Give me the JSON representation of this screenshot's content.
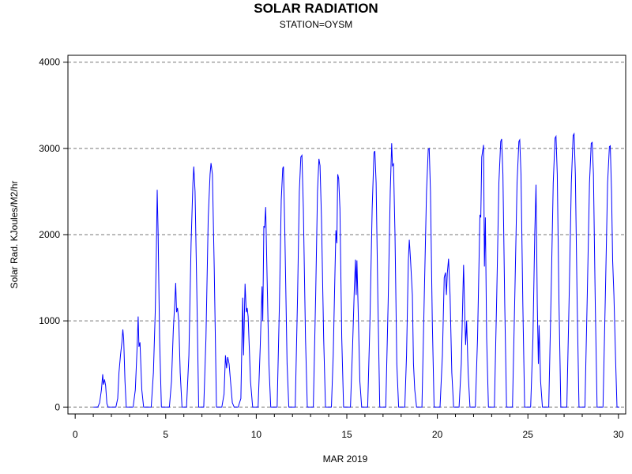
{
  "chart_data": {
    "type": "line",
    "title": "SOLAR RADIATION",
    "subtitle": "STATION=OYSM",
    "xlabel": "MAR 2019",
    "ylabel": "Solar Rad. KJoules/M2/hr",
    "xlim": [
      -0.4,
      30.4
    ],
    "ylim": [
      -80,
      4080
    ],
    "x_ticks": [
      0,
      5,
      10,
      15,
      20,
      25,
      30
    ],
    "y_ticks": [
      0,
      1000,
      2000,
      3000,
      4000
    ],
    "grid": "horizontal dashed",
    "series": [
      {
        "color": "#0000ff",
        "points": [
          [
            1.0,
            0
          ],
          [
            1.25,
            0
          ],
          [
            1.35,
            50
          ],
          [
            1.45,
            200
          ],
          [
            1.52,
            380
          ],
          [
            1.56,
            260
          ],
          [
            1.62,
            320
          ],
          [
            1.68,
            250
          ],
          [
            1.75,
            40
          ],
          [
            1.82,
            0
          ],
          [
            2.25,
            0
          ],
          [
            2.35,
            100
          ],
          [
            2.42,
            400
          ],
          [
            2.5,
            600
          ],
          [
            2.58,
            750
          ],
          [
            2.63,
            900
          ],
          [
            2.68,
            780
          ],
          [
            2.75,
            300
          ],
          [
            2.82,
            0
          ],
          [
            3.2,
            0
          ],
          [
            3.32,
            200
          ],
          [
            3.42,
            700
          ],
          [
            3.48,
            1050
          ],
          [
            3.52,
            700
          ],
          [
            3.58,
            750
          ],
          [
            3.68,
            200
          ],
          [
            3.78,
            0
          ],
          [
            4.2,
            0
          ],
          [
            4.32,
            400
          ],
          [
            4.42,
            1100
          ],
          [
            4.48,
            1800
          ],
          [
            4.53,
            2520
          ],
          [
            4.58,
            2000
          ],
          [
            4.66,
            800
          ],
          [
            4.76,
            0
          ],
          [
            5.2,
            0
          ],
          [
            5.32,
            300
          ],
          [
            5.42,
            900
          ],
          [
            5.5,
            1200
          ],
          [
            5.55,
            1440
          ],
          [
            5.6,
            1100
          ],
          [
            5.65,
            1150
          ],
          [
            5.72,
            1000
          ],
          [
            5.8,
            400
          ],
          [
            5.9,
            0
          ],
          [
            6.15,
            0
          ],
          [
            6.28,
            600
          ],
          [
            6.4,
            1900
          ],
          [
            6.5,
            2600
          ],
          [
            6.55,
            2790
          ],
          [
            6.62,
            2500
          ],
          [
            6.72,
            1300
          ],
          [
            6.82,
            0
          ],
          [
            7.1,
            0
          ],
          [
            7.22,
            800
          ],
          [
            7.35,
            2200
          ],
          [
            7.45,
            2700
          ],
          [
            7.5,
            2830
          ],
          [
            7.58,
            2700
          ],
          [
            7.68,
            1600
          ],
          [
            7.8,
            0
          ],
          [
            8.1,
            0
          ],
          [
            8.22,
            150
          ],
          [
            8.3,
            600
          ],
          [
            8.36,
            450
          ],
          [
            8.42,
            580
          ],
          [
            8.5,
            500
          ],
          [
            8.58,
            300
          ],
          [
            8.68,
            50
          ],
          [
            8.78,
            0
          ],
          [
            9.0,
            0
          ],
          [
            9.15,
            100
          ],
          [
            9.25,
            1270
          ],
          [
            9.3,
            600
          ],
          [
            9.38,
            1430
          ],
          [
            9.45,
            1100
          ],
          [
            9.5,
            1150
          ],
          [
            9.55,
            1050
          ],
          [
            9.68,
            300
          ],
          [
            9.8,
            0
          ],
          [
            10.1,
            0
          ],
          [
            10.22,
            700
          ],
          [
            10.32,
            1400
          ],
          [
            10.36,
            1000
          ],
          [
            10.42,
            2100
          ],
          [
            10.46,
            2080
          ],
          [
            10.52,
            2320
          ],
          [
            10.6,
            1500
          ],
          [
            10.7,
            500
          ],
          [
            10.8,
            0
          ],
          [
            11.15,
            0
          ],
          [
            11.28,
            1200
          ],
          [
            11.38,
            2400
          ],
          [
            11.46,
            2770
          ],
          [
            11.5,
            2790
          ],
          [
            11.58,
            2000
          ],
          [
            11.7,
            500
          ],
          [
            11.8,
            0
          ],
          [
            12.15,
            0
          ],
          [
            12.28,
            1300
          ],
          [
            12.38,
            2500
          ],
          [
            12.46,
            2900
          ],
          [
            12.52,
            2920
          ],
          [
            12.6,
            2300
          ],
          [
            12.72,
            800
          ],
          [
            12.82,
            0
          ],
          [
            13.15,
            0
          ],
          [
            13.28,
            1300
          ],
          [
            13.38,
            2500
          ],
          [
            13.46,
            2880
          ],
          [
            13.52,
            2800
          ],
          [
            13.6,
            2200
          ],
          [
            13.72,
            800
          ],
          [
            13.82,
            0
          ],
          [
            14.15,
            0
          ],
          [
            14.25,
            600
          ],
          [
            14.35,
            1600
          ],
          [
            14.4,
            2050
          ],
          [
            14.45,
            1900
          ],
          [
            14.5,
            2700
          ],
          [
            14.55,
            2650
          ],
          [
            14.62,
            2300
          ],
          [
            14.72,
            800
          ],
          [
            14.82,
            0
          ],
          [
            15.2,
            0
          ],
          [
            15.32,
            700
          ],
          [
            15.42,
            1400
          ],
          [
            15.48,
            1710
          ],
          [
            15.52,
            1300
          ],
          [
            15.56,
            1700
          ],
          [
            15.62,
            1200
          ],
          [
            15.72,
            300
          ],
          [
            15.82,
            0
          ],
          [
            16.15,
            0
          ],
          [
            16.28,
            1000
          ],
          [
            16.4,
            2300
          ],
          [
            16.5,
            2950
          ],
          [
            16.55,
            2970
          ],
          [
            16.62,
            2600
          ],
          [
            16.72,
            1200
          ],
          [
            16.82,
            0
          ],
          [
            17.15,
            0
          ],
          [
            17.28,
            1200
          ],
          [
            17.4,
            2500
          ],
          [
            17.48,
            3060
          ],
          [
            17.52,
            2800
          ],
          [
            17.58,
            2820
          ],
          [
            17.66,
            2000
          ],
          [
            17.76,
            500
          ],
          [
            17.86,
            0
          ],
          [
            18.2,
            0
          ],
          [
            18.3,
            600
          ],
          [
            18.4,
            1700
          ],
          [
            18.45,
            1940
          ],
          [
            18.52,
            1700
          ],
          [
            18.62,
            1300
          ],
          [
            18.68,
            500
          ],
          [
            18.75,
            200
          ],
          [
            18.85,
            0
          ],
          [
            19.15,
            0
          ],
          [
            19.28,
            1300
          ],
          [
            19.4,
            2500
          ],
          [
            19.5,
            2990
          ],
          [
            19.55,
            3000
          ],
          [
            19.62,
            2500
          ],
          [
            19.72,
            1000
          ],
          [
            19.82,
            0
          ],
          [
            20.15,
            0
          ],
          [
            20.28,
            600
          ],
          [
            20.38,
            1500
          ],
          [
            20.45,
            1560
          ],
          [
            20.5,
            1300
          ],
          [
            20.55,
            1550
          ],
          [
            20.62,
            1720
          ],
          [
            20.7,
            1300
          ],
          [
            20.8,
            400
          ],
          [
            20.9,
            0
          ],
          [
            21.2,
            0
          ],
          [
            21.32,
            500
          ],
          [
            21.45,
            1650
          ],
          [
            21.52,
            1000
          ],
          [
            21.56,
            720
          ],
          [
            21.62,
            1000
          ],
          [
            21.7,
            400
          ],
          [
            21.8,
            0
          ],
          [
            22.1,
            0
          ],
          [
            22.22,
            800
          ],
          [
            22.35,
            2230
          ],
          [
            22.4,
            2200
          ],
          [
            22.45,
            2900
          ],
          [
            22.55,
            3040
          ],
          [
            22.6,
            1630
          ],
          [
            22.65,
            2200
          ],
          [
            22.72,
            800
          ],
          [
            22.82,
            0
          ],
          [
            23.15,
            0
          ],
          [
            23.28,
            1300
          ],
          [
            23.4,
            2600
          ],
          [
            23.5,
            3080
          ],
          [
            23.55,
            3110
          ],
          [
            23.62,
            2700
          ],
          [
            23.72,
            1200
          ],
          [
            23.82,
            0
          ],
          [
            24.15,
            0
          ],
          [
            24.28,
            1300
          ],
          [
            24.4,
            2600
          ],
          [
            24.5,
            3080
          ],
          [
            24.55,
            3100
          ],
          [
            24.62,
            2700
          ],
          [
            24.72,
            1200
          ],
          [
            24.82,
            0
          ],
          [
            25.15,
            0
          ],
          [
            25.28,
            800
          ],
          [
            25.38,
            2000
          ],
          [
            25.45,
            2580
          ],
          [
            25.52,
            1200
          ],
          [
            25.58,
            500
          ],
          [
            25.62,
            950
          ],
          [
            25.7,
            300
          ],
          [
            25.8,
            0
          ],
          [
            26.15,
            0
          ],
          [
            26.28,
            1300
          ],
          [
            26.4,
            2600
          ],
          [
            26.5,
            3120
          ],
          [
            26.55,
            3140
          ],
          [
            26.62,
            2700
          ],
          [
            26.72,
            1200
          ],
          [
            26.82,
            0
          ],
          [
            27.15,
            0
          ],
          [
            27.28,
            1300
          ],
          [
            27.4,
            2600
          ],
          [
            27.5,
            3150
          ],
          [
            27.55,
            3170
          ],
          [
            27.62,
            2700
          ],
          [
            27.72,
            1200
          ],
          [
            27.82,
            0
          ],
          [
            28.15,
            0
          ],
          [
            28.28,
            1300
          ],
          [
            28.4,
            2600
          ],
          [
            28.5,
            3060
          ],
          [
            28.55,
            3070
          ],
          [
            28.62,
            2700
          ],
          [
            28.72,
            1200
          ],
          [
            28.82,
            0
          ],
          [
            29.15,
            0
          ],
          [
            29.28,
            1300
          ],
          [
            29.4,
            2600
          ],
          [
            29.5,
            3020
          ],
          [
            29.55,
            3030
          ],
          [
            29.62,
            2500
          ],
          [
            29.68,
            1700
          ],
          [
            29.75,
            1300
          ],
          [
            29.85,
            500
          ],
          [
            29.92,
            0
          ],
          [
            30.05,
            0
          ]
        ]
      }
    ]
  }
}
